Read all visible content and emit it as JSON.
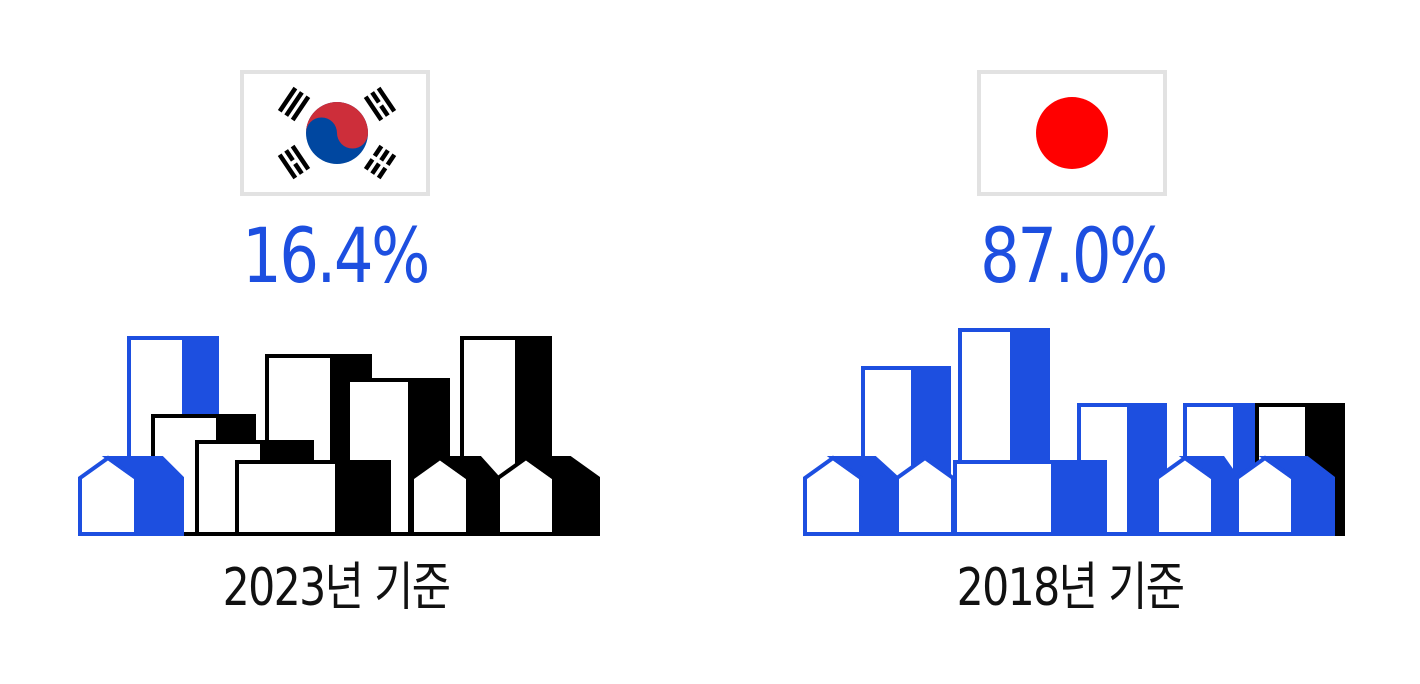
{
  "countries": [
    {
      "flag": "south-korea-flag-icon",
      "percentage": "16.4%",
      "caption": "2023년 기준",
      "filled_share_percent": 16.4
    },
    {
      "flag": "japan-flag-icon",
      "percentage": "87.0%",
      "caption": "2018년 기준",
      "filled_share_percent": 87.0
    }
  ],
  "colors": {
    "accent_blue": "#1d4fe0",
    "black": "#000000",
    "korea_red": "#cd2e3a",
    "korea_blue": "#0047a0",
    "japan_red": "#ff0000",
    "flag_border": "#e2e2e2"
  }
}
